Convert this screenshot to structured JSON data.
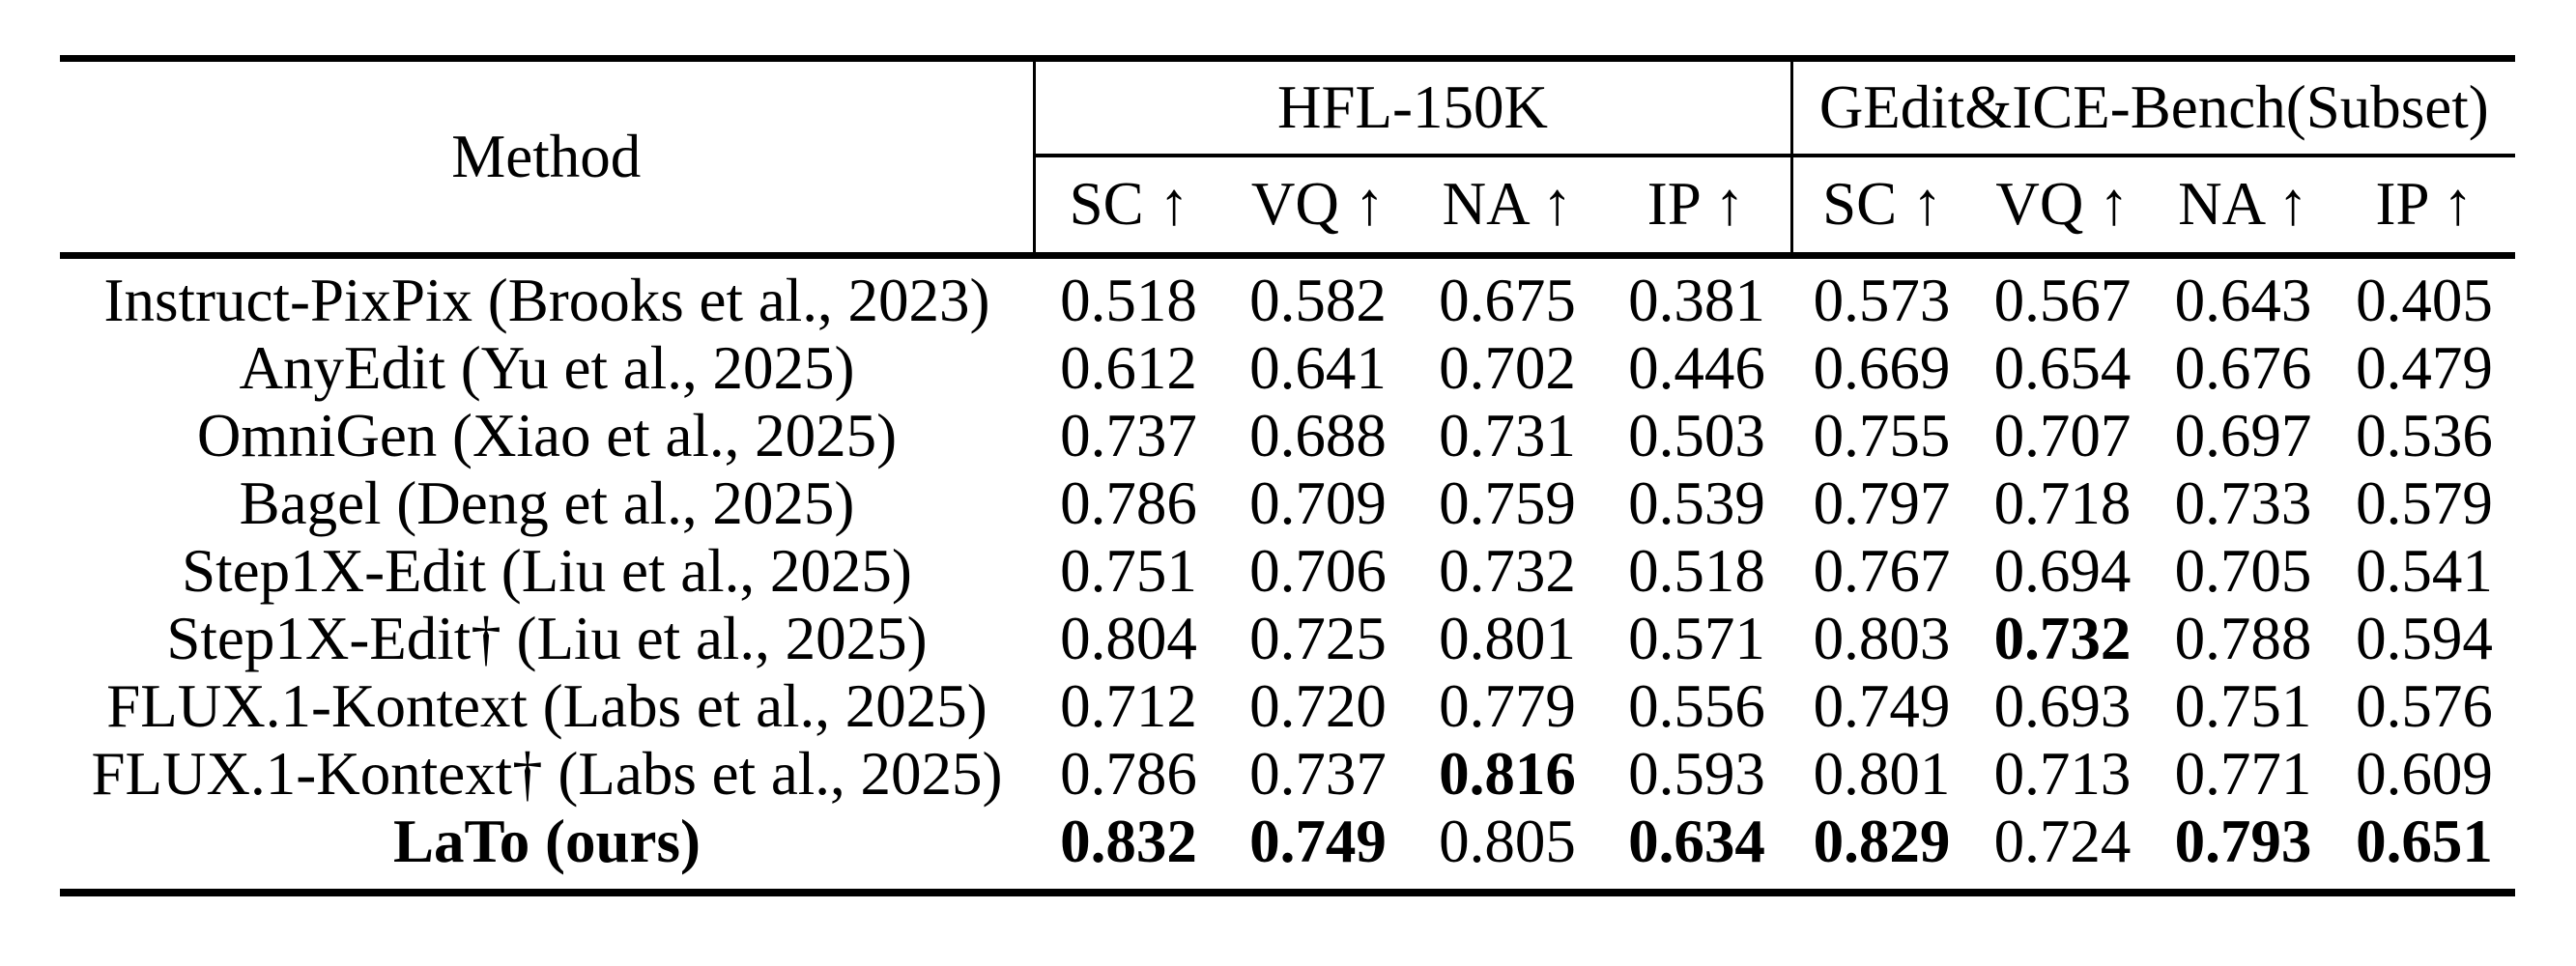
{
  "table": {
    "method_header": "Method",
    "col_groups": [
      {
        "label": "HFL-150K",
        "metrics": [
          "SC ↑",
          "VQ ↑",
          "NA ↑",
          "IP ↑"
        ]
      },
      {
        "label": "GEdit&ICE-Bench(Subset)",
        "metrics": [
          "SC ↑",
          "VQ ↑",
          "NA ↑",
          "IP ↑"
        ]
      }
    ],
    "rows": [
      {
        "method": "Instruct-PixPix (Brooks et al., 2023)",
        "method_bold": false,
        "cells": [
          {
            "v": "0.518",
            "b": false
          },
          {
            "v": "0.582",
            "b": false
          },
          {
            "v": "0.675",
            "b": false
          },
          {
            "v": "0.381",
            "b": false
          },
          {
            "v": "0.573",
            "b": false
          },
          {
            "v": "0.567",
            "b": false
          },
          {
            "v": "0.643",
            "b": false
          },
          {
            "v": "0.405",
            "b": false
          }
        ]
      },
      {
        "method": "AnyEdit (Yu et al., 2025)",
        "method_bold": false,
        "cells": [
          {
            "v": "0.612",
            "b": false
          },
          {
            "v": "0.641",
            "b": false
          },
          {
            "v": "0.702",
            "b": false
          },
          {
            "v": "0.446",
            "b": false
          },
          {
            "v": "0.669",
            "b": false
          },
          {
            "v": "0.654",
            "b": false
          },
          {
            "v": "0.676",
            "b": false
          },
          {
            "v": "0.479",
            "b": false
          }
        ]
      },
      {
        "method": "OmniGen (Xiao et al., 2025)",
        "method_bold": false,
        "cells": [
          {
            "v": "0.737",
            "b": false
          },
          {
            "v": "0.688",
            "b": false
          },
          {
            "v": "0.731",
            "b": false
          },
          {
            "v": "0.503",
            "b": false
          },
          {
            "v": "0.755",
            "b": false
          },
          {
            "v": "0.707",
            "b": false
          },
          {
            "v": "0.697",
            "b": false
          },
          {
            "v": "0.536",
            "b": false
          }
        ]
      },
      {
        "method": "Bagel (Deng et al., 2025)",
        "method_bold": false,
        "cells": [
          {
            "v": "0.786",
            "b": false
          },
          {
            "v": "0.709",
            "b": false
          },
          {
            "v": "0.759",
            "b": false
          },
          {
            "v": "0.539",
            "b": false
          },
          {
            "v": "0.797",
            "b": false
          },
          {
            "v": "0.718",
            "b": false
          },
          {
            "v": "0.733",
            "b": false
          },
          {
            "v": "0.579",
            "b": false
          }
        ]
      },
      {
        "method": "Step1X-Edit (Liu et al., 2025)",
        "method_bold": false,
        "cells": [
          {
            "v": "0.751",
            "b": false
          },
          {
            "v": "0.706",
            "b": false
          },
          {
            "v": "0.732",
            "b": false
          },
          {
            "v": "0.518",
            "b": false
          },
          {
            "v": "0.767",
            "b": false
          },
          {
            "v": "0.694",
            "b": false
          },
          {
            "v": "0.705",
            "b": false
          },
          {
            "v": "0.541",
            "b": false
          }
        ]
      },
      {
        "method": "Step1X-Edit† (Liu et al., 2025)",
        "method_bold": false,
        "cells": [
          {
            "v": "0.804",
            "b": false
          },
          {
            "v": "0.725",
            "b": false
          },
          {
            "v": "0.801",
            "b": false
          },
          {
            "v": "0.571",
            "b": false
          },
          {
            "v": "0.803",
            "b": false
          },
          {
            "v": "0.732",
            "b": true
          },
          {
            "v": "0.788",
            "b": false
          },
          {
            "v": "0.594",
            "b": false
          }
        ]
      },
      {
        "method": "FLUX.1-Kontext (Labs et al., 2025)",
        "method_bold": false,
        "cells": [
          {
            "v": "0.712",
            "b": false
          },
          {
            "v": "0.720",
            "b": false
          },
          {
            "v": "0.779",
            "b": false
          },
          {
            "v": "0.556",
            "b": false
          },
          {
            "v": "0.749",
            "b": false
          },
          {
            "v": "0.693",
            "b": false
          },
          {
            "v": "0.751",
            "b": false
          },
          {
            "v": "0.576",
            "b": false
          }
        ]
      },
      {
        "method": "FLUX.1-Kontext† (Labs et al., 2025)",
        "method_bold": false,
        "cells": [
          {
            "v": "0.786",
            "b": false
          },
          {
            "v": "0.737",
            "b": false
          },
          {
            "v": "0.816",
            "b": true
          },
          {
            "v": "0.593",
            "b": false
          },
          {
            "v": "0.801",
            "b": false
          },
          {
            "v": "0.713",
            "b": false
          },
          {
            "v": "0.771",
            "b": false
          },
          {
            "v": "0.609",
            "b": false
          }
        ]
      },
      {
        "method": "LaTo (ours)",
        "method_bold": true,
        "cells": [
          {
            "v": "0.832",
            "b": true
          },
          {
            "v": "0.749",
            "b": true
          },
          {
            "v": "0.805",
            "b": false
          },
          {
            "v": "0.634",
            "b": true
          },
          {
            "v": "0.829",
            "b": true
          },
          {
            "v": "0.724",
            "b": false
          },
          {
            "v": "0.793",
            "b": true
          },
          {
            "v": "0.651",
            "b": true
          }
        ]
      }
    ]
  }
}
